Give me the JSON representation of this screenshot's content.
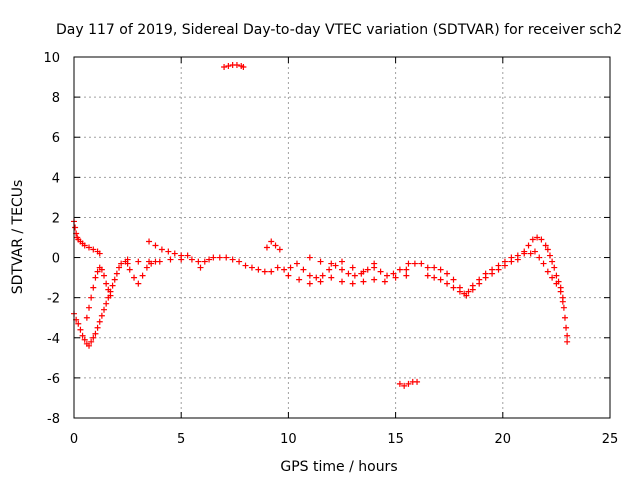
{
  "chart_data": {
    "type": "scatter",
    "title": "Day 117 of 2019, Sidereal Day-to-day VTEC variation (SDTVAR) for receiver sch2",
    "xlabel": "GPS time / hours",
    "ylabel": "SDTVAR / TECUs",
    "xlim": [
      0,
      25
    ],
    "ylim": [
      -8,
      10
    ],
    "x_ticks": [
      0,
      5,
      10,
      15,
      20,
      25
    ],
    "y_ticks": [
      -8,
      -6,
      -4,
      -2,
      0,
      2,
      4,
      6,
      8,
      10
    ],
    "grid": true,
    "marker": "+",
    "series_color": "#ff0000",
    "series": [
      {
        "name": "sch2",
        "points": [
          [
            0.0,
            1.8
          ],
          [
            0.05,
            1.5
          ],
          [
            0.1,
            1.2
          ],
          [
            0.15,
            1.0
          ],
          [
            0.2,
            0.9
          ],
          [
            0.3,
            0.8
          ],
          [
            0.4,
            0.7
          ],
          [
            0.5,
            0.6
          ],
          [
            0.7,
            0.5
          ],
          [
            0.9,
            0.4
          ],
          [
            1.1,
            0.3
          ],
          [
            1.2,
            0.2
          ],
          [
            0.0,
            -2.8
          ],
          [
            0.1,
            -3.1
          ],
          [
            0.2,
            -3.3
          ],
          [
            0.3,
            -3.6
          ],
          [
            0.4,
            -3.9
          ],
          [
            0.5,
            -4.1
          ],
          [
            0.6,
            -4.3
          ],
          [
            0.7,
            -4.4
          ],
          [
            0.8,
            -4.2
          ],
          [
            0.9,
            -4.0
          ],
          [
            1.0,
            -3.8
          ],
          [
            1.1,
            -3.5
          ],
          [
            1.2,
            -3.2
          ],
          [
            1.3,
            -2.9
          ],
          [
            1.4,
            -2.6
          ],
          [
            1.5,
            -2.3
          ],
          [
            1.6,
            -2.0
          ],
          [
            1.7,
            -1.7
          ],
          [
            1.8,
            -1.4
          ],
          [
            1.9,
            -1.1
          ],
          [
            2.0,
            -0.8
          ],
          [
            2.1,
            -0.5
          ],
          [
            2.2,
            -0.3
          ],
          [
            2.4,
            -0.2
          ],
          [
            0.6,
            -3.0
          ],
          [
            0.7,
            -2.5
          ],
          [
            0.8,
            -2.0
          ],
          [
            0.9,
            -1.5
          ],
          [
            1.0,
            -1.0
          ],
          [
            1.1,
            -0.7
          ],
          [
            1.2,
            -0.5
          ],
          [
            1.3,
            -0.6
          ],
          [
            1.4,
            -0.9
          ],
          [
            1.5,
            -1.3
          ],
          [
            1.6,
            -1.6
          ],
          [
            1.7,
            -1.9
          ],
          [
            2.5,
            -0.1
          ],
          [
            2.6,
            -0.6
          ],
          [
            2.8,
            -1.0
          ],
          [
            3.0,
            -1.3
          ],
          [
            3.2,
            -0.9
          ],
          [
            3.4,
            -0.5
          ],
          [
            3.6,
            -0.3
          ],
          [
            3.8,
            -0.2
          ],
          [
            3.5,
            0.8
          ],
          [
            3.8,
            0.6
          ],
          [
            4.1,
            0.4
          ],
          [
            4.4,
            0.3
          ],
          [
            4.7,
            0.2
          ],
          [
            5.0,
            0.1
          ],
          [
            5.3,
            0.1
          ],
          [
            2.5,
            -0.3
          ],
          [
            3.0,
            -0.2
          ],
          [
            3.5,
            -0.2
          ],
          [
            4.0,
            -0.2
          ],
          [
            4.5,
            -0.1
          ],
          [
            5.0,
            -0.1
          ],
          [
            5.5,
            -0.1
          ],
          [
            5.8,
            -0.2
          ],
          [
            5.9,
            -0.5
          ],
          [
            6.1,
            -0.2
          ],
          [
            6.3,
            -0.1
          ],
          [
            6.5,
            0.0
          ],
          [
            6.8,
            0.0
          ],
          [
            7.1,
            0.0
          ],
          [
            7.4,
            -0.1
          ],
          [
            7.7,
            -0.2
          ],
          [
            8.0,
            -0.4
          ],
          [
            8.3,
            -0.5
          ],
          [
            8.6,
            -0.6
          ],
          [
            8.9,
            -0.7
          ],
          [
            9.2,
            -0.7
          ],
          [
            9.0,
            0.5
          ],
          [
            9.2,
            0.8
          ],
          [
            9.4,
            0.6
          ],
          [
            9.6,
            0.4
          ],
          [
            9.5,
            -0.5
          ],
          [
            9.8,
            -0.6
          ],
          [
            10.1,
            -0.5
          ],
          [
            10.4,
            -0.3
          ],
          [
            10.7,
            -0.6
          ],
          [
            11.0,
            -0.9
          ],
          [
            11.3,
            -1.0
          ],
          [
            11.6,
            -0.9
          ],
          [
            11.9,
            -0.6
          ],
          [
            12.2,
            -0.4
          ],
          [
            12.5,
            -0.6
          ],
          [
            12.8,
            -0.8
          ],
          [
            13.1,
            -0.9
          ],
          [
            13.4,
            -0.8
          ],
          [
            13.7,
            -0.6
          ],
          [
            14.0,
            -0.5
          ],
          [
            14.3,
            -0.7
          ],
          [
            14.6,
            -0.9
          ],
          [
            14.9,
            -0.8
          ],
          [
            15.2,
            -0.6
          ],
          [
            15.5,
            -0.6
          ],
          [
            10.0,
            -0.9
          ],
          [
            10.5,
            -1.1
          ],
          [
            11.0,
            -1.3
          ],
          [
            11.5,
            -1.2
          ],
          [
            12.0,
            -1.0
          ],
          [
            12.5,
            -1.2
          ],
          [
            13.0,
            -1.3
          ],
          [
            13.5,
            -1.2
          ],
          [
            14.0,
            -1.1
          ],
          [
            14.5,
            -1.2
          ],
          [
            15.0,
            -1.0
          ],
          [
            15.5,
            -0.9
          ],
          [
            11.0,
            0.0
          ],
          [
            11.5,
            -0.2
          ],
          [
            12.0,
            -0.3
          ],
          [
            12.5,
            -0.2
          ],
          [
            13.0,
            -0.5
          ],
          [
            13.5,
            -0.7
          ],
          [
            14.0,
            -0.3
          ],
          [
            15.6,
            -0.3
          ],
          [
            15.9,
            -0.3
          ],
          [
            16.2,
            -0.3
          ],
          [
            16.5,
            -0.5
          ],
          [
            16.8,
            -0.5
          ],
          [
            17.1,
            -0.6
          ],
          [
            17.4,
            -0.8
          ],
          [
            17.7,
            -1.1
          ],
          [
            18.0,
            -1.5
          ],
          [
            18.2,
            -1.8
          ],
          [
            18.4,
            -1.7
          ],
          [
            18.6,
            -1.4
          ],
          [
            18.9,
            -1.1
          ],
          [
            19.2,
            -0.8
          ],
          [
            19.5,
            -0.6
          ],
          [
            19.8,
            -0.4
          ],
          [
            20.1,
            -0.2
          ],
          [
            20.4,
            0.0
          ],
          [
            20.7,
            0.1
          ],
          [
            21.0,
            0.3
          ],
          [
            16.5,
            -0.9
          ],
          [
            16.8,
            -1.0
          ],
          [
            17.1,
            -1.1
          ],
          [
            17.4,
            -1.3
          ],
          [
            17.7,
            -1.5
          ],
          [
            18.0,
            -1.7
          ],
          [
            18.3,
            -1.9
          ],
          [
            18.6,
            -1.6
          ],
          [
            18.9,
            -1.3
          ],
          [
            19.2,
            -1.0
          ],
          [
            19.5,
            -0.8
          ],
          [
            19.8,
            -0.6
          ],
          [
            20.1,
            -0.4
          ],
          [
            20.4,
            -0.2
          ],
          [
            20.7,
            -0.1
          ],
          [
            21.0,
            0.2
          ],
          [
            21.2,
            0.6
          ],
          [
            21.4,
            0.9
          ],
          [
            21.6,
            1.0
          ],
          [
            21.8,
            0.9
          ],
          [
            22.0,
            0.6
          ],
          [
            22.1,
            0.4
          ],
          [
            22.2,
            0.1
          ],
          [
            22.3,
            -0.2
          ],
          [
            22.4,
            -0.5
          ],
          [
            22.5,
            -0.9
          ],
          [
            22.6,
            -1.2
          ],
          [
            22.7,
            -1.5
          ],
          [
            22.8,
            -2.0
          ],
          [
            22.85,
            -2.5
          ],
          [
            22.9,
            -3.0
          ],
          [
            22.95,
            -3.5
          ],
          [
            23.0,
            -3.9
          ],
          [
            23.0,
            -4.2
          ],
          [
            21.3,
            0.2
          ],
          [
            21.5,
            0.3
          ],
          [
            21.7,
            0.0
          ],
          [
            21.9,
            -0.3
          ],
          [
            22.1,
            -0.7
          ],
          [
            22.3,
            -1.0
          ],
          [
            22.5,
            -1.3
          ],
          [
            22.7,
            -1.7
          ],
          [
            22.8,
            -2.2
          ],
          [
            7.0,
            9.5
          ],
          [
            7.2,
            9.55
          ],
          [
            7.4,
            9.6
          ],
          [
            7.6,
            9.6
          ],
          [
            7.8,
            9.55
          ],
          [
            7.9,
            9.5
          ],
          [
            15.2,
            -6.3
          ],
          [
            15.4,
            -6.4
          ],
          [
            15.6,
            -6.3
          ],
          [
            15.8,
            -6.2
          ],
          [
            16.0,
            -6.2
          ]
        ]
      }
    ]
  }
}
